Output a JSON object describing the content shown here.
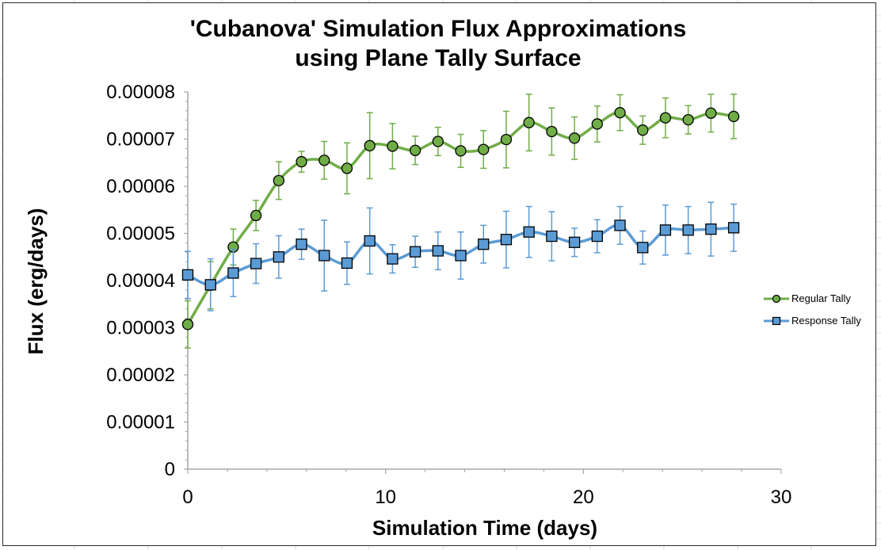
{
  "chart_data": {
    "type": "line",
    "title_lines": [
      "'Cubanova' Simulation Flux Approximations",
      "using Plane Tally Surface"
    ],
    "xlabel": "Simulation Time (days)",
    "ylabel": "Flux (erg/days)",
    "xlim": [
      0,
      30
    ],
    "ylim": [
      0,
      8e-05
    ],
    "x_ticks": [
      0,
      10,
      20,
      30
    ],
    "x_tick_labels": [
      "0",
      "10",
      "20",
      "30"
    ],
    "y_ticks": [
      0,
      1e-05,
      2e-05,
      3e-05,
      4e-05,
      5e-05,
      6e-05,
      7e-05,
      8e-05
    ],
    "y_tick_labels": [
      "0",
      "0.00001",
      "0.00002",
      "0.00003",
      "0.00004",
      "0.00005",
      "0.00006",
      "0.00007",
      "0.00008"
    ],
    "grid": false,
    "legend_position": "right",
    "x": [
      0,
      1.15,
      2.3,
      3.45,
      4.6,
      5.75,
      6.9,
      8.05,
      9.2,
      10.35,
      11.5,
      12.65,
      13.8,
      14.95,
      16.1,
      17.25,
      18.4,
      19.55,
      20.7,
      21.85,
      23.0,
      24.15,
      25.3,
      26.45,
      27.6
    ],
    "series": [
      {
        "name": "Regular Tally",
        "color": "#70ad47",
        "marker": "circle",
        "marker_fill": "#70ad47",
        "values": [
          3.07e-05,
          3.9e-05,
          4.71e-05,
          5.38e-05,
          6.12e-05,
          6.52e-05,
          6.55e-05,
          6.38e-05,
          6.86e-05,
          6.85e-05,
          6.76e-05,
          6.95e-05,
          6.75e-05,
          6.78e-05,
          6.99e-05,
          7.35e-05,
          7.16e-05,
          7.02e-05,
          7.32e-05,
          7.56e-05,
          7.19e-05,
          7.45e-05,
          7.41e-05,
          7.55e-05,
          7.48e-05
        ],
        "error": [
          5e-06,
          5e-06,
          3.8e-06,
          3.2e-06,
          4e-06,
          2.2e-06,
          4e-06,
          5.4e-06,
          7e-06,
          4.8e-06,
          3e-06,
          3e-06,
          3.5e-06,
          4e-06,
          6e-06,
          6e-06,
          5e-06,
          4.5e-06,
          3.8e-06,
          3.8e-06,
          3e-06,
          4.2e-06,
          3e-06,
          4e-06,
          4.7e-06
        ]
      },
      {
        "name": "Response Tally",
        "color": "#5b9bd5",
        "marker": "square",
        "marker_fill": "#5b9bd5",
        "values": [
          4.12e-05,
          3.91e-05,
          4.16e-05,
          4.36e-05,
          4.5e-05,
          4.77e-05,
          4.53e-05,
          4.37e-05,
          4.84e-05,
          4.46e-05,
          4.61e-05,
          4.63e-05,
          4.53e-05,
          4.77e-05,
          4.87e-05,
          5.03e-05,
          4.94e-05,
          4.81e-05,
          4.94e-05,
          5.17e-05,
          4.7e-05,
          5.07e-05,
          5.07e-05,
          5.09e-05,
          5.12e-05
        ],
        "error": [
          5e-06,
          5.5e-06,
          5e-06,
          4.2e-06,
          4.5e-06,
          3.2e-06,
          7.5e-06,
          4.5e-06,
          7e-06,
          3e-06,
          3.3e-06,
          4e-06,
          5e-06,
          4e-06,
          6e-06,
          5.4e-06,
          5.2e-06,
          3e-06,
          3.5e-06,
          4e-06,
          3.5e-06,
          5.3e-06,
          5e-06,
          5.7e-06,
          5e-06
        ]
      }
    ]
  }
}
